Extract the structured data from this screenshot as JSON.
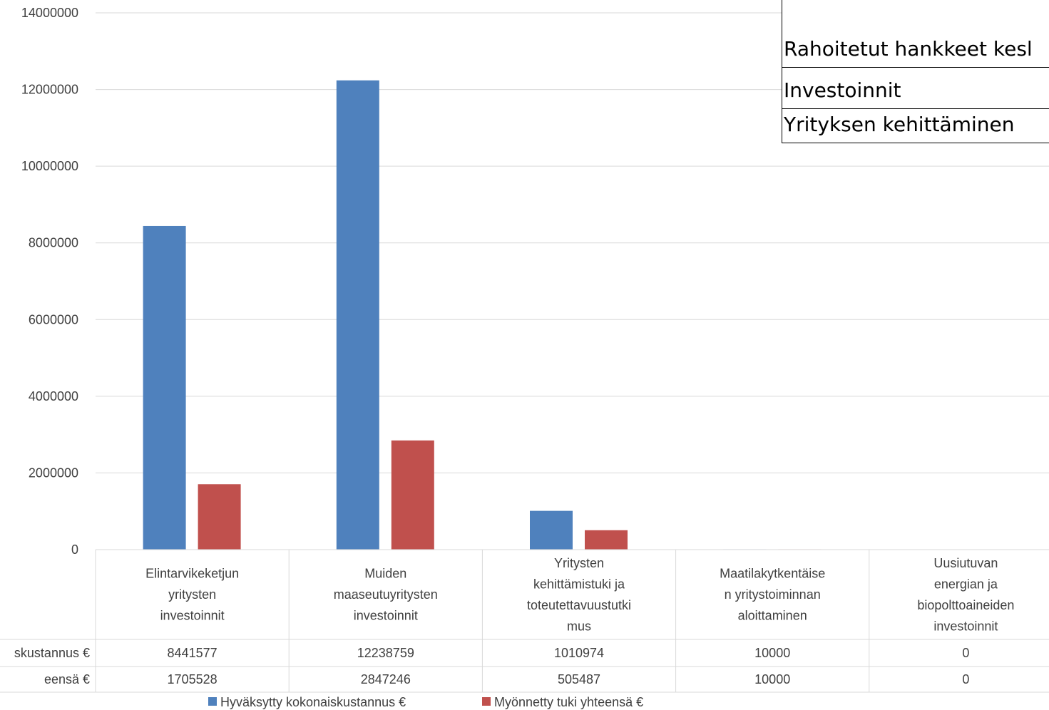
{
  "chart_data": {
    "type": "bar",
    "categories": [
      [
        "Elintarvikeketjun",
        "yritysten",
        "investoinnit"
      ],
      [
        "Muiden",
        "maaseutuyritysten",
        "investoinnit"
      ],
      [
        "Yritysten",
        "kehittämistuki ja",
        "toteutettavuustutki",
        "mus"
      ],
      [
        "Maatilakytkentäise",
        "n yritystoiminnan",
        "aloittaminen"
      ],
      [
        "Uusiutuvan",
        "energian ja",
        "biopolttoaineiden",
        "investoinnit"
      ]
    ],
    "series": [
      {
        "name": "Hyväksytty kokonaiskustannus €",
        "row_label": "skustannus €",
        "color": "#4f81bd",
        "values": [
          8441577,
          12238759,
          1010974,
          10000,
          0
        ]
      },
      {
        "name": "Myönnetty tuki yhteensä €",
        "row_label": "eensä €",
        "color": "#c0504d",
        "values": [
          1705528,
          2847246,
          505487,
          10000,
          0
        ]
      }
    ],
    "ylim": [
      0,
      14000000
    ],
    "yticks": [
      0,
      2000000,
      4000000,
      6000000,
      8000000,
      10000000,
      12000000,
      14000000
    ],
    "grid": true,
    "legend": "bottom",
    "data_table": true
  },
  "overlay": {
    "title": "Rahoitetut hankkeet kesl",
    "row1": "Investoinnit",
    "row2": "Yrityksen kehittäminen"
  }
}
